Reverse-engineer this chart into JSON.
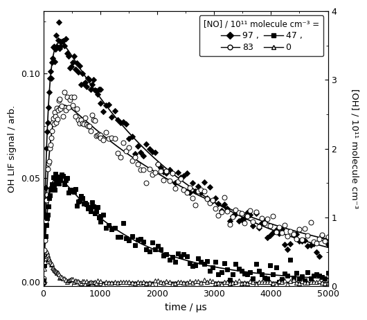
{
  "xlabel": "time / μs",
  "ylabel_left": "OH LIF signal / arb.",
  "ylabel_right": "[OH] / 10¹¹ molecule cm⁻³",
  "xlim": [
    0,
    5000
  ],
  "ylim_left": [
    -0.002,
    0.13
  ],
  "ylim_right": [
    -0.002,
    4
  ],
  "xticks": [
    0,
    1000,
    2000,
    3000,
    4000,
    5000
  ],
  "yticks_left": [
    0.0,
    0.05,
    0.1
  ],
  "yticks_right": [
    0,
    1,
    2,
    3,
    4
  ],
  "legend_title": "[NO] / 10¹¹ molecule cm⁻³ =",
  "series": [
    {
      "label": "97",
      "marker": "D",
      "filled": true,
      "peak_y": 0.115,
      "rise_tau": 85,
      "decay_tau": 2400,
      "noise": 0.003
    },
    {
      "label": "83",
      "marker": "o",
      "filled": false,
      "peak_y": 0.085,
      "rise_tau": 100,
      "decay_tau": 3200,
      "noise": 0.003
    },
    {
      "label": "47",
      "marker": "s",
      "filled": true,
      "peak_y": 0.05,
      "rise_tau": 85,
      "decay_tau": 1400,
      "noise": 0.002
    },
    {
      "label": "0",
      "marker": "^",
      "filled": false,
      "peak_y": 0.013,
      "rise_tau": 45,
      "decay_tau": 130,
      "noise": 0.0005
    }
  ],
  "background_color": "#ffffff"
}
